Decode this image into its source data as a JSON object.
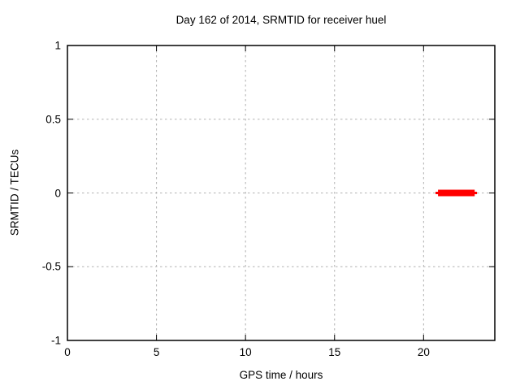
{
  "chart_data": {
    "type": "line",
    "title": "Day 162 of 2014, SRMTID for receiver huel",
    "xlabel": "GPS time / hours",
    "ylabel": "SRMTID / TECUs",
    "xlim": [
      0,
      24
    ],
    "ylim": [
      -1,
      1
    ],
    "xticks": [
      0,
      5,
      10,
      15,
      20
    ],
    "xtick_labels": [
      "0",
      "5",
      "10",
      "15",
      "20"
    ],
    "yticks": [
      -1,
      -0.5,
      0,
      0.5,
      1
    ],
    "ytick_labels": [
      "-1",
      "-0.5",
      "0",
      "0.5",
      "1"
    ],
    "grid": true,
    "legend_position": "none",
    "series": [
      {
        "name": "SRMTID",
        "color": "#ff0000",
        "y": 0,
        "x_start": 20.67,
        "x_end": 23.0,
        "core_x_start": 20.81,
        "core_x_end": 22.87
      }
    ],
    "colors": {
      "series": "#ff0000",
      "grid": "#b0b0b0",
      "border": "#000000",
      "background": "#ffffff",
      "text": "#000000"
    }
  }
}
